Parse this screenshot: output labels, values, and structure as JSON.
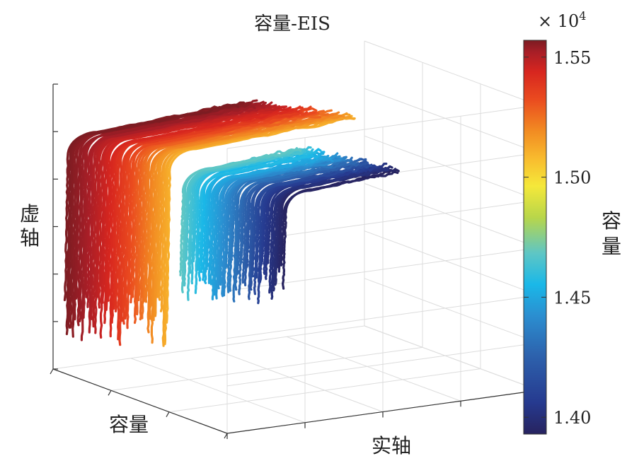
{
  "chart_data": {
    "type": "3d-line",
    "title": "容量-EIS",
    "xlabel": "容量",
    "ylabel": "实轴",
    "zlabel": "虚轴",
    "colorbar": {
      "label": "容量",
      "exponent_label": "× 10",
      "exponent_power": "4",
      "tick_labels": [
        "1.55",
        "1.50",
        "1.45",
        "1.40"
      ],
      "ticks": [
        1.55,
        1.5,
        1.45,
        1.4
      ],
      "range": [
        1.393,
        1.557
      ],
      "colormap": [
        "#27235f",
        "#263a8f",
        "#2d62ad",
        "#2b8ed0",
        "#1ab8e8",
        "#5fc6c4",
        "#b8d64a",
        "#f5e83a",
        "#f8bb2e",
        "#f28b22",
        "#ea4b1f",
        "#d7261f",
        "#a81e27",
        "#7c1c22"
      ]
    },
    "grid": true,
    "groups": [
      {
        "name": "",
        "capacity_range": [
          1.497,
          1.557
        ],
        "curve_count": 55
      },
      {
        "name": "",
        "capacity_range": [
          1.393,
          1.456
        ],
        "curve_count": 55
      }
    ]
  }
}
